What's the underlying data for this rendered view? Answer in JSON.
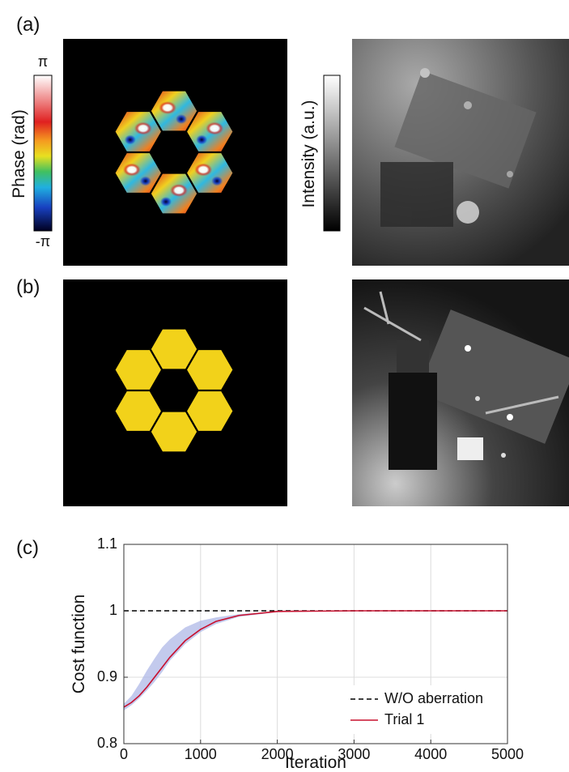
{
  "panels": {
    "a": {
      "label": "(a)",
      "phase_colorbar": {
        "label": "Phase (rad)",
        "max": "π",
        "min": "-π"
      },
      "intensity_colorbar": {
        "label": "Intensity (a.u.)"
      }
    },
    "b": {
      "label": "(b)"
    },
    "c": {
      "label": "(c)"
    }
  },
  "chart_data": {
    "type": "line",
    "xlabel": "Iteration",
    "ylabel": "Cost function",
    "x": [
      0,
      100,
      200,
      300,
      400,
      500,
      600,
      800,
      1000,
      1200,
      1500,
      2000,
      3000,
      5000
    ],
    "series": [
      {
        "name": "W/O aberration",
        "color": "#000000",
        "dashed": true,
        "values": [
          1,
          1,
          1,
          1,
          1,
          1,
          1,
          1,
          1,
          1,
          1,
          1,
          1,
          1
        ]
      },
      {
        "name": "Trial 1",
        "color": "#c8102e",
        "dashed": false,
        "band_color": "#aab4e6",
        "values": [
          0.855,
          0.862,
          0.872,
          0.885,
          0.9,
          0.915,
          0.93,
          0.955,
          0.972,
          0.984,
          0.993,
          0.999,
          1,
          1
        ],
        "lower": [
          0.85,
          0.858,
          0.868,
          0.88,
          0.893,
          0.908,
          0.925,
          0.95,
          0.968,
          0.98,
          0.991,
          0.998,
          1,
          1
        ],
        "upper": [
          0.86,
          0.872,
          0.89,
          0.91,
          0.928,
          0.945,
          0.957,
          0.975,
          0.985,
          0.99,
          0.995,
          0.999,
          1,
          1
        ]
      }
    ],
    "xlim": [
      0,
      5000
    ],
    "xticks": [
      0,
      1000,
      2000,
      3000,
      4000,
      5000
    ],
    "ylim": [
      0.8,
      1.1
    ],
    "yticks": [
      0.8,
      0.9,
      1,
      1.1
    ],
    "grid": true,
    "legend": "lower right"
  }
}
